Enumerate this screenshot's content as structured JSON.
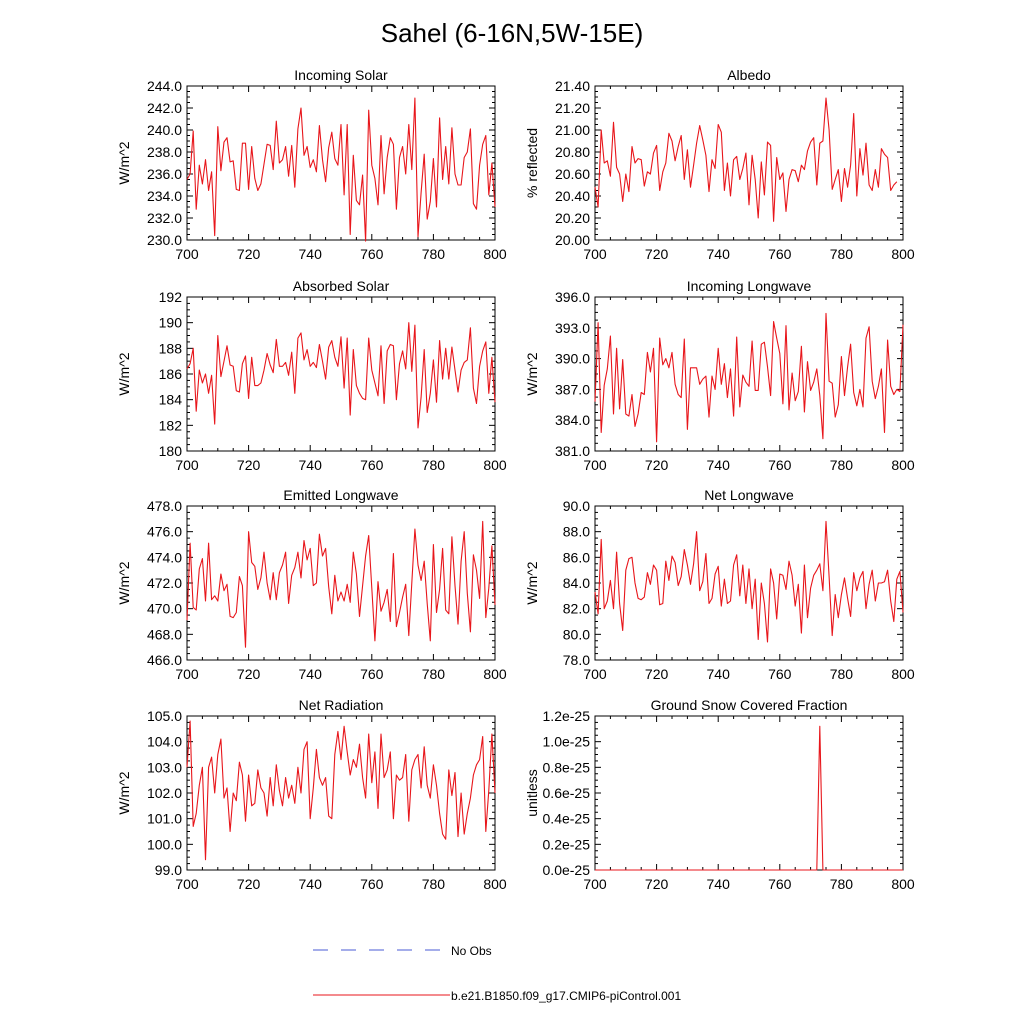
{
  "figure_title": "Sahel (6-16N,5W-15E)",
  "legend": {
    "obs_label": "No Obs",
    "obs_color": "#4a5bd4",
    "model_label": "b.e21.B1850.f09_g17.CMIP6-piControl.001",
    "model_color": "#e8161b"
  },
  "chart_data": [
    {
      "type": "line",
      "title": "Incoming Solar",
      "ylabel": "W/m^2",
      "xlim": [
        700,
        800
      ],
      "ylim": [
        230,
        244
      ],
      "xticks": [
        "700",
        "720",
        "740",
        "760",
        "780",
        "800"
      ],
      "yticks": [
        "230.0",
        "232.0",
        "234.0",
        "236.0",
        "238.0",
        "240.0",
        "242.0",
        "244.0"
      ],
      "x_start": 700,
      "values": [
        235.5,
        236.0,
        239.9,
        232.8,
        236.8,
        235.1,
        237.3,
        234.5,
        236.2,
        230.4,
        240.3,
        236.3,
        238.9,
        239.3,
        237.1,
        237.2,
        234.6,
        234.5,
        238.8,
        238.8,
        234.6,
        238.5,
        235.6,
        234.5,
        235.1,
        236.9,
        238.7,
        238.6,
        236.4,
        240.8,
        237.0,
        237.3,
        238.5,
        235.8,
        238.6,
        234.8,
        240.1,
        242.0,
        237.7,
        238.5,
        236.6,
        237.3,
        236.2,
        240.4,
        237.3,
        235.3,
        238.4,
        239.8,
        237.4,
        236.8,
        240.5,
        234.1,
        240.5,
        230.5,
        237.7,
        233.6,
        233.2,
        235.9,
        229.9,
        241.8,
        236.8,
        235.6,
        233.2,
        239.5,
        234.2,
        237.5,
        239.3,
        238.7,
        232.8,
        237.5,
        238.5,
        236.0,
        240.5,
        236.4,
        242.9,
        230.3,
        234.3,
        237.8,
        231.9,
        233.5,
        237.4,
        233.0,
        241.1,
        235.5,
        238.5,
        235.1,
        240.2,
        236.0,
        235.0,
        235.0,
        237.5,
        238.0,
        240.1,
        233.3,
        232.8,
        236.8,
        238.7,
        239.5,
        234.1,
        237.0,
        233.0
      ]
    },
    {
      "type": "line",
      "title": "Albedo",
      "ylabel": "% reflected",
      "xlim": [
        700,
        800
      ],
      "ylim": [
        20.0,
        21.4
      ],
      "xticks": [
        "700",
        "720",
        "740",
        "760",
        "780",
        "800"
      ],
      "yticks": [
        "20.00",
        "20.20",
        "20.40",
        "20.60",
        "20.80",
        "21.00",
        "21.20",
        "21.40"
      ],
      "x_start": 700,
      "values": [
        20.48,
        20.3,
        21.0,
        20.7,
        20.72,
        20.58,
        21.07,
        20.66,
        20.6,
        20.35,
        20.6,
        20.44,
        20.85,
        20.7,
        20.74,
        20.73,
        20.49,
        20.62,
        20.6,
        20.79,
        20.86,
        20.45,
        20.62,
        20.7,
        20.97,
        20.9,
        20.72,
        20.85,
        20.95,
        20.55,
        20.82,
        20.48,
        20.68,
        20.88,
        21.04,
        20.91,
        20.77,
        20.44,
        20.73,
        20.65,
        21.05,
        20.98,
        20.45,
        20.7,
        20.4,
        20.73,
        20.76,
        20.55,
        20.65,
        20.79,
        20.32,
        20.77,
        20.55,
        20.2,
        20.71,
        20.41,
        20.89,
        20.86,
        20.17,
        20.75,
        20.55,
        20.61,
        20.26,
        20.55,
        20.64,
        20.63,
        20.53,
        20.68,
        20.64,
        20.81,
        20.89,
        20.93,
        20.5,
        20.88,
        20.9,
        21.29,
        21.0,
        20.46,
        20.55,
        20.64,
        20.35,
        20.65,
        20.48,
        20.68,
        21.15,
        20.4,
        20.83,
        20.59,
        20.88,
        20.5,
        20.45,
        20.64,
        20.48,
        20.83,
        20.78,
        20.75,
        20.45,
        20.5,
        20.53
      ]
    },
    {
      "type": "line",
      "title": "Absorbed Solar",
      "ylabel": "W/m^2",
      "xlim": [
        700,
        800
      ],
      "ylim": [
        180,
        192
      ],
      "xticks": [
        "700",
        "720",
        "740",
        "760",
        "780",
        "800"
      ],
      "yticks": [
        "180",
        "182",
        "184",
        "186",
        "188",
        "190",
        "192"
      ],
      "x_start": 700,
      "values": [
        186.4,
        186.8,
        188.0,
        183.1,
        186.3,
        185.3,
        186.0,
        184.5,
        185.9,
        182.1,
        189.0,
        185.8,
        187.0,
        188.2,
        186.7,
        186.6,
        184.7,
        184.6,
        186.8,
        187.4,
        184.1,
        187.3,
        185.1,
        185.1,
        185.3,
        186.3,
        187.6,
        186.7,
        186.1,
        188.7,
        186.6,
        186.6,
        186.9,
        185.9,
        187.7,
        184.5,
        188.8,
        189.2,
        187.1,
        187.9,
        186.6,
        186.9,
        186.5,
        188.3,
        187.0,
        185.6,
        188.1,
        188.6,
        187.3,
        186.6,
        188.9,
        184.9,
        188.8,
        182.8,
        187.9,
        185.1,
        184.5,
        184.1,
        184.0,
        188.8,
        186.3,
        185.3,
        184.3,
        188.2,
        183.7,
        187.8,
        188.3,
        188.2,
        184.0,
        186.8,
        187.8,
        186.4,
        190.0,
        186.2,
        189.8,
        181.8,
        184.2,
        187.9,
        183.0,
        184.5,
        187.1,
        183.8,
        188.6,
        185.6,
        188.0,
        185.6,
        188.1,
        186.3,
        184.6,
        186.3,
        186.9,
        187.1,
        189.6,
        184.9,
        183.7,
        186.6,
        187.8,
        188.5,
        184.5,
        187.3,
        183.8
      ]
    },
    {
      "type": "line",
      "title": "Incoming Longwave",
      "ylabel": "W/m^2",
      "xlim": [
        700,
        800
      ],
      "ylim": [
        381,
        396
      ],
      "xticks": [
        "700",
        "720",
        "740",
        "760",
        "780",
        "800"
      ],
      "yticks": [
        "381.0",
        "384.0",
        "387.0",
        "390.0",
        "393.0",
        "396.0"
      ],
      "x_start": 700,
      "values": [
        385.8,
        393.5,
        382.8,
        387.4,
        389.0,
        392.2,
        384.6,
        391.0,
        385.1,
        389.9,
        384.6,
        384.4,
        386.5,
        383.4,
        384.6,
        386.7,
        386.5,
        390.6,
        388.7,
        391.0,
        381.9,
        392.0,
        389.4,
        390.0,
        389.1,
        390.6,
        387.5,
        386.5,
        386.2,
        391.9,
        383.1,
        389.1,
        389.1,
        389.1,
        387.5,
        388.0,
        388.3,
        384.3,
        388.3,
        387.0,
        391.0,
        387.5,
        389.5,
        386.2,
        389.0,
        384.4,
        392.1,
        385.3,
        388.4,
        387.7,
        387.3,
        391.7,
        386.9,
        386.9,
        391.4,
        391.6,
        389.2,
        386.4,
        393.6,
        392.0,
        390.5,
        385.6,
        393.2,
        385.0,
        388.6,
        385.9,
        386.8,
        391.2,
        384.8,
        389.7,
        386.9,
        387.7,
        389.0,
        386.4,
        382.2,
        394.4,
        387.8,
        387.6,
        384.3,
        385.5,
        390.2,
        386.4,
        389.2,
        391.4,
        386.7,
        385.4,
        387.0,
        385.3,
        392.0,
        393.1,
        387.8,
        386.1,
        387.3,
        389.0,
        382.8,
        391.8,
        387.3,
        386.5,
        387.0,
        386.8,
        393.3
      ]
    },
    {
      "type": "line",
      "title": "Emitted Longwave",
      "ylabel": "W/m^2",
      "xlim": [
        700,
        800
      ],
      "ylim": [
        466,
        478
      ],
      "xticks": [
        "700",
        "720",
        "740",
        "760",
        "780",
        "800"
      ],
      "yticks": [
        "466.0",
        "468.0",
        "470.0",
        "472.0",
        "474.0",
        "476.0",
        "478.0"
      ],
      "x_start": 700,
      "values": [
        469.1,
        475.1,
        470.1,
        469.9,
        473.1,
        473.9,
        470.6,
        475.1,
        470.7,
        471.0,
        470.6,
        472.7,
        471.4,
        471.9,
        469.4,
        469.3,
        469.7,
        472.5,
        471.8,
        467.0,
        476.0,
        473.6,
        473.3,
        471.5,
        472.4,
        474.4,
        472.0,
        470.7,
        472.8,
        470.7,
        472.8,
        473.4,
        474.4,
        470.4,
        472.6,
        473.2,
        474.4,
        472.4,
        475.3,
        473.8,
        474.7,
        471.8,
        472.0,
        475.8,
        474.1,
        474.7,
        471.7,
        469.6,
        472.6,
        470.6,
        471.3,
        470.6,
        471.9,
        470.5,
        474.4,
        472.7,
        469.4,
        471.8,
        474.1,
        475.7,
        471.6,
        467.5,
        472.1,
        469.8,
        470.5,
        471.5,
        469.0,
        474.3,
        468.6,
        469.7,
        470.9,
        471.9,
        467.9,
        472.0,
        476.2,
        473.4,
        472.2,
        473.7,
        470.4,
        467.5,
        475.0,
        469.7,
        471.5,
        474.7,
        469.9,
        469.6,
        475.6,
        471.8,
        468.8,
        473.7,
        476.0,
        471.2,
        468.2,
        474.2,
        473.0,
        470.8,
        476.8,
        469.3,
        471.6,
        474.9,
        470.3
      ]
    },
    {
      "type": "line",
      "title": "Net Longwave",
      "ylabel": "W/m^2",
      "xlim": [
        700,
        800
      ],
      "ylim": [
        78,
        90
      ],
      "xticks": [
        "700",
        "720",
        "740",
        "760",
        "780",
        "800"
      ],
      "yticks": [
        "78.0",
        "80.0",
        "82.0",
        "84.0",
        "86.0",
        "88.0",
        "90.0"
      ],
      "x_start": 700,
      "values": [
        83.3,
        81.6,
        87.4,
        82.0,
        82.6,
        84.2,
        82.0,
        86.4,
        82.4,
        80.3,
        85.0,
        85.9,
        86.0,
        84.0,
        82.8,
        82.7,
        82.9,
        84.8,
        83.9,
        85.4,
        85.0,
        82.3,
        82.4,
        85.7,
        84.2,
        86.1,
        85.6,
        83.8,
        84.5,
        86.6,
        85.4,
        83.9,
        85.5,
        88.0,
        83.4,
        84.1,
        86.3,
        82.4,
        82.8,
        84.7,
        85.3,
        82.2,
        84.3,
        82.4,
        82.6,
        85.4,
        86.2,
        83.0,
        85.4,
        82.4,
        85.1,
        82.0,
        84.3,
        79.6,
        84.0,
        82.4,
        79.4,
        85.1,
        84.0,
        81.2,
        84.7,
        84.6,
        83.5,
        85.7,
        84.6,
        82.2,
        83.9,
        80.1,
        85.4,
        81.3,
        83.6,
        84.6,
        85.0,
        85.5,
        83.4,
        88.8,
        84.5,
        79.9,
        83.1,
        81.3,
        83.1,
        84.4,
        82.8,
        81.4,
        84.8,
        83.4,
        84.4,
        84.9,
        82.0,
        83.9,
        85.0,
        82.6,
        84.0,
        84.0,
        84.1,
        85.0,
        82.6,
        81.0,
        84.3,
        84.9,
        81.7
      ]
    },
    {
      "type": "line",
      "title": "Net Radiation",
      "ylabel": "W/m^2",
      "xlim": [
        700,
        800
      ],
      "ylim": [
        99,
        105
      ],
      "xticks": [
        "700",
        "720",
        "740",
        "760",
        "780",
        "800"
      ],
      "yticks": [
        "99.0",
        "100.0",
        "101.0",
        "102.0",
        "103.0",
        "104.0",
        "105.0"
      ],
      "x_start": 700,
      "values": [
        103.0,
        104.8,
        100.7,
        101.2,
        102.3,
        103.0,
        99.4,
        103.0,
        103.4,
        102.0,
        103.5,
        104.1,
        101.8,
        102.2,
        100.5,
        102.0,
        101.7,
        103.2,
        102.7,
        100.9,
        102.7,
        101.5,
        101.6,
        102.9,
        102.2,
        102.0,
        101.1,
        102.6,
        101.5,
        103.1,
        102.1,
        101.5,
        102.6,
        101.8,
        102.3,
        101.6,
        103.0,
        102.0,
        103.7,
        104.0,
        101.0,
        102.2,
        103.7,
        102.6,
        102.3,
        102.6,
        101.1,
        101.0,
        103.5,
        104.4,
        103.3,
        104.6,
        103.6,
        102.7,
        103.3,
        103.0,
        103.9,
        102.6,
        101.8,
        104.3,
        102.4,
        103.6,
        101.4,
        104.3,
        102.6,
        102.9,
        103.6,
        101.0,
        102.7,
        102.5,
        102.6,
        103.5,
        100.9,
        102.9,
        103.3,
        103.5,
        102.2,
        103.8,
        102.3,
        101.8,
        103.1,
        102.3,
        101.2,
        100.4,
        100.2,
        102.9,
        101.9,
        102.8,
        100.3,
        102.0,
        100.4,
        101.2,
        101.8,
        102.7,
        103.1,
        103.3,
        104.2,
        100.5,
        102.1,
        104.3,
        102.0
      ]
    },
    {
      "type": "line",
      "title": "Ground Snow Covered Fraction",
      "ylabel": "unitless",
      "xlim": [
        700,
        800
      ],
      "ylim": [
        0,
        1.2e-25
      ],
      "xticks": [
        "700",
        "720",
        "740",
        "760",
        "780",
        "800"
      ],
      "yticks": [
        "0.0e-25",
        "0.2e-25",
        "0.4e-25",
        "0.6e-25",
        "0.8e-25",
        "1.0e-25",
        "1.2e-25"
      ],
      "x": [
        700,
        772,
        773,
        774,
        800
      ],
      "values": [
        0,
        0,
        1.12e-25,
        0,
        0
      ]
    }
  ]
}
